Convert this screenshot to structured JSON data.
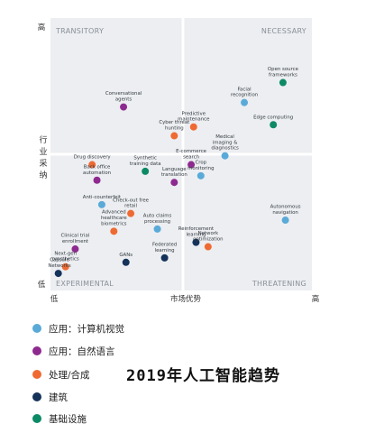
{
  "chart_data": {
    "type": "scatter",
    "headline": "2019年人工智能趋势",
    "x_axis": {
      "low_label": "低",
      "title": "市场优势",
      "high_label": "高",
      "range": [
        0,
        10
      ]
    },
    "y_axis": {
      "low_label": "低",
      "title": "行业采纳",
      "high_label": "高",
      "range": [
        0,
        10
      ]
    },
    "quadrants": {
      "top_left": "TRANSITORY",
      "top_right": "NECESSARY",
      "bottom_left": "EXPERIMENTAL",
      "bottom_right": "THREATENING"
    },
    "categories": [
      {
        "key": "cv",
        "name": "应用：计算机视觉",
        "color": "#5aaad8"
      },
      {
        "key": "nlp",
        "name": "应用：自然语言",
        "color": "#8e2a8f"
      },
      {
        "key": "proc",
        "name": "处理/合成",
        "color": "#ef6a32"
      },
      {
        "key": "arch",
        "name": "建筑",
        "color": "#14325a"
      },
      {
        "key": "infra",
        "name": "基础设施",
        "color": "#0c8a66"
      }
    ],
    "points": [
      {
        "label": "Open source frameworks",
        "x": 9.4,
        "y": 8.8,
        "cat": "infra"
      },
      {
        "label": "Facial recognition",
        "x": 7.8,
        "y": 7.9,
        "cat": "cv"
      },
      {
        "label": "Conversational agents",
        "x": 2.8,
        "y": 7.7,
        "cat": "nlp"
      },
      {
        "label": "Predictive maintenance",
        "x": 5.7,
        "y": 6.8,
        "cat": "proc"
      },
      {
        "label": "Edge computing",
        "x": 9.0,
        "y": 6.9,
        "cat": "infra"
      },
      {
        "label": "Cyber threat hunting",
        "x": 4.9,
        "y": 6.4,
        "cat": "proc"
      },
      {
        "label": "Medical imaging & diagnostics",
        "x": 7.0,
        "y": 5.5,
        "cat": "cv"
      },
      {
        "label": "Synthetic training data",
        "x": 3.7,
        "y": 4.8,
        "cat": "infra"
      },
      {
        "label": "E-commerce search",
        "x": 5.6,
        "y": 5.1,
        "cat": "nlp"
      },
      {
        "label": "Drug discovery",
        "x": 1.5,
        "y": 5.1,
        "cat": "proc"
      },
      {
        "label": "Back office automation",
        "x": 1.7,
        "y": 4.4,
        "cat": "nlp"
      },
      {
        "label": "Crop monitoring",
        "x": 6.0,
        "y": 4.6,
        "cat": "cv"
      },
      {
        "label": "Language translation",
        "x": 4.9,
        "y": 4.3,
        "cat": "nlp"
      },
      {
        "label": "Anti-counterfeit",
        "x": 1.9,
        "y": 3.3,
        "cat": "cv"
      },
      {
        "label": "Check-out free retail",
        "x": 3.1,
        "y": 2.9,
        "cat": "proc"
      },
      {
        "label": "Autonomous navigation",
        "x": 9.5,
        "y": 2.6,
        "cat": "cv"
      },
      {
        "label": "Advanced healthcare biometrics",
        "x": 2.4,
        "y": 2.1,
        "cat": "proc"
      },
      {
        "label": "Auto claims processing",
        "x": 4.2,
        "y": 2.2,
        "cat": "cv"
      },
      {
        "label": "Reinforcement learning",
        "x": 5.8,
        "y": 1.6,
        "cat": "arch"
      },
      {
        "label": "Clinical trial enrollment",
        "x": 0.8,
        "y": 1.3,
        "cat": "nlp"
      },
      {
        "label": "Network optimization",
        "x": 6.3,
        "y": 1.4,
        "cat": "proc"
      },
      {
        "label": "Next-gen prosthetics",
        "x": 0.4,
        "y": 0.5,
        "cat": "proc"
      },
      {
        "label": "GANs",
        "x": 2.9,
        "y": 0.7,
        "cat": "arch"
      },
      {
        "label": "Federated learning",
        "x": 4.5,
        "y": 0.9,
        "cat": "arch"
      },
      {
        "label": "Capsule Networks",
        "x": 0.1,
        "y": 0.2,
        "cat": "arch"
      }
    ]
  }
}
